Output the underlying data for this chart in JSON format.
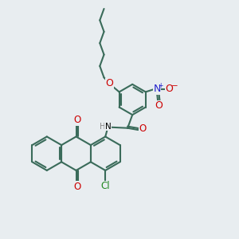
{
  "bg_color": "#e8edf0",
  "bond_color": "#3a6b5a",
  "bond_lw": 1.5,
  "atom_colors": {
    "O": "#cc0000",
    "N": "#2222cc",
    "Cl": "#228822",
    "H": "#888888"
  },
  "font_size": 7.5,
  "figsize": [
    3.0,
    3.0
  ],
  "dpi": 100
}
